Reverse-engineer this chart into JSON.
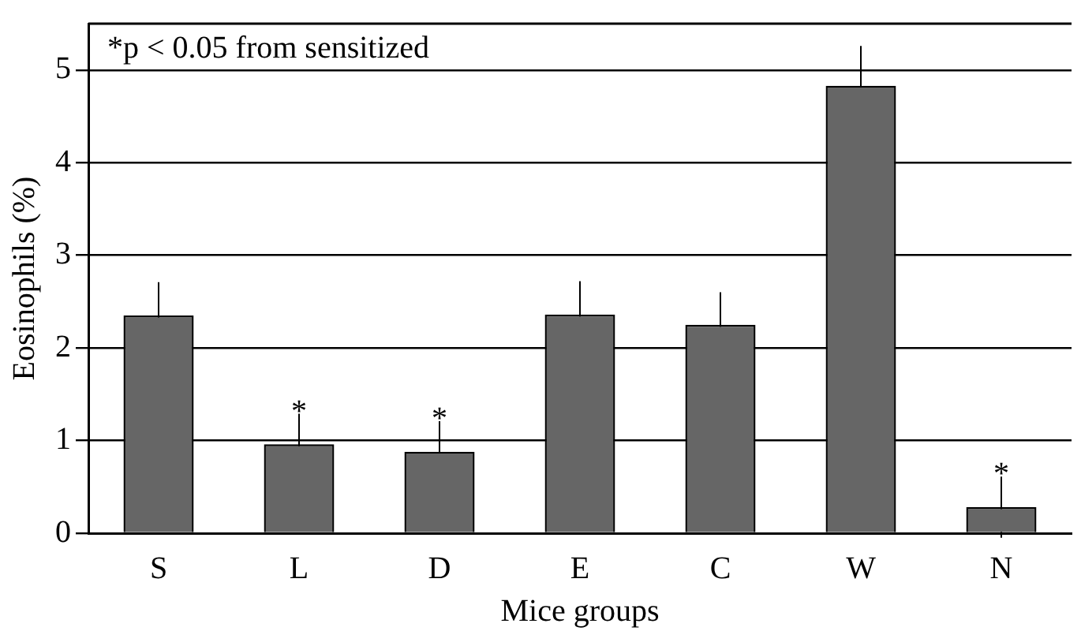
{
  "chart_data": {
    "type": "bar",
    "xlabel": "Mice groups",
    "ylabel": "Eosinophils (%)",
    "categories": [
      "S",
      "L",
      "D",
      "E",
      "C",
      "W",
      "N"
    ],
    "values": [
      2.35,
      0.96,
      0.88,
      2.36,
      2.25,
      4.83,
      0.28
    ],
    "errors": [
      0.36,
      0.33,
      0.33,
      0.36,
      0.35,
      0.43,
      0.33
    ],
    "color": "#666666",
    "ylim": [
      0,
      5.5
    ],
    "yticks": [
      0,
      1,
      2,
      3,
      4,
      5
    ],
    "grid": "y",
    "legend": false,
    "annotations": [
      "*p < 0.05 from sensitized",
      {
        "text": "*",
        "x": "L",
        "y": 1.37
      },
      {
        "text": "*",
        "x": "D",
        "y": 1.29
      },
      {
        "text": "*",
        "x": "N",
        "y": 0.69
      }
    ]
  }
}
